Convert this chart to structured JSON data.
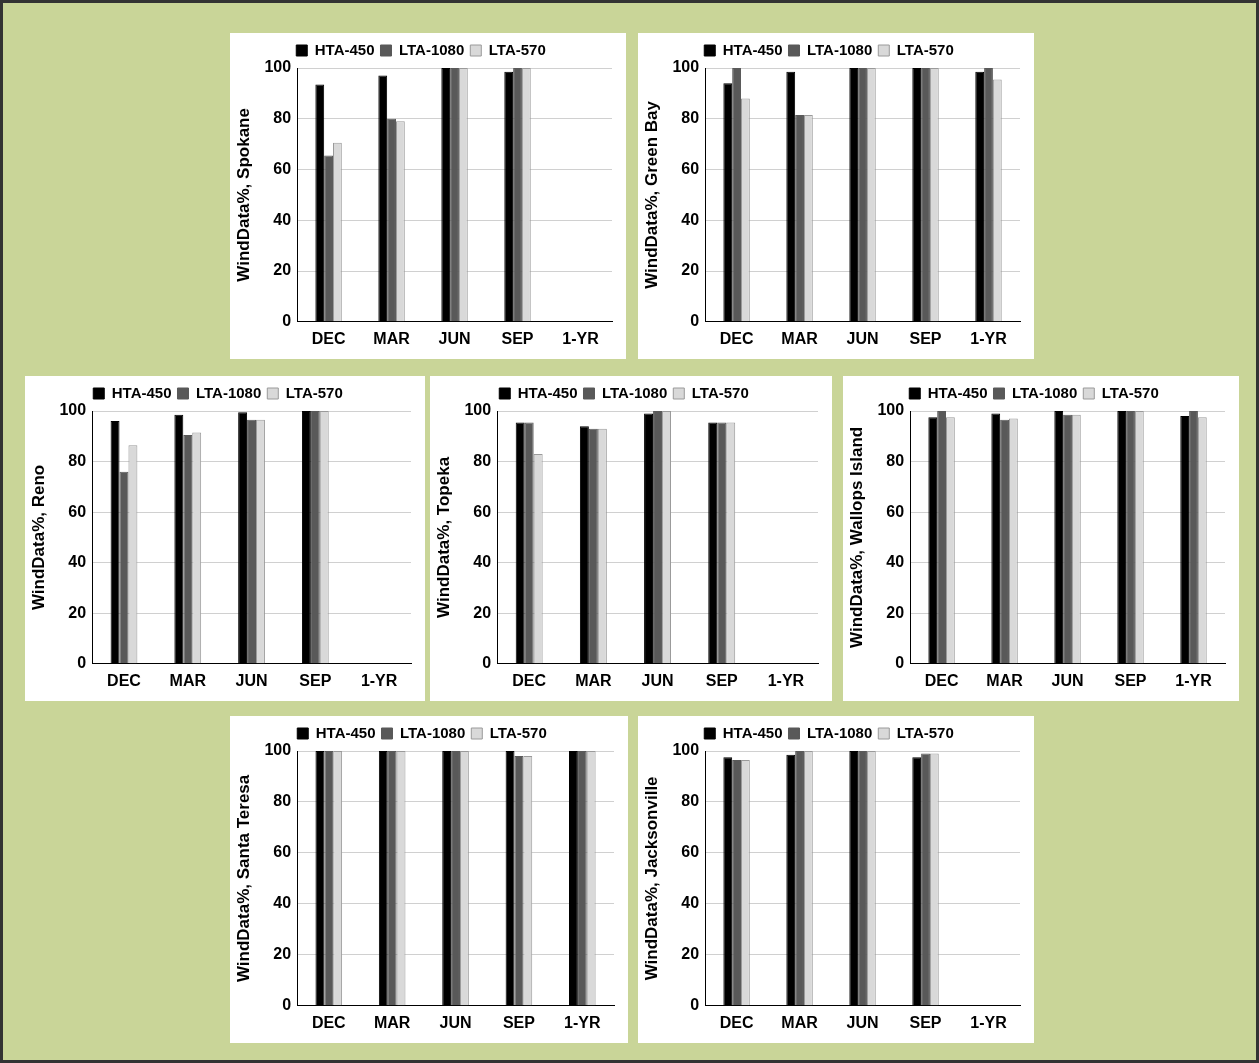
{
  "chart_data": [
    {
      "type": "bar",
      "ylabel": "WindData%, Spokane",
      "categories": [
        "DEC",
        "MAR",
        "JUN",
        "SEP",
        "1-YR"
      ],
      "ylim": [
        0,
        100
      ],
      "yticks": [
        0,
        20,
        40,
        60,
        80,
        100
      ],
      "grid": "y",
      "legend": "top",
      "series": [
        {
          "name": "HTA-450",
          "color": "#000000",
          "values": [
            93.5,
            97,
            100,
            98.5,
            null
          ]
        },
        {
          "name": "LTA-1080",
          "color": "#595959",
          "values": [
            65.5,
            80,
            100,
            100,
            null
          ]
        },
        {
          "name": "LTA-570",
          "color": "#d9d9d9",
          "values": [
            70.5,
            79,
            100,
            100,
            null
          ]
        }
      ]
    },
    {
      "type": "bar",
      "ylabel": "WindData%, Green Bay",
      "categories": [
        "DEC",
        "MAR",
        "JUN",
        "SEP",
        "1-YR"
      ],
      "ylim": [
        0,
        100
      ],
      "yticks": [
        0,
        20,
        40,
        60,
        80,
        100
      ],
      "grid": "y",
      "legend": "top",
      "series": [
        {
          "name": "HTA-450",
          "color": "#000000",
          "values": [
            94,
            98.5,
            100,
            100,
            98.5
          ]
        },
        {
          "name": "LTA-1080",
          "color": "#595959",
          "values": [
            100,
            81.5,
            100,
            100,
            100
          ]
        },
        {
          "name": "LTA-570",
          "color": "#d9d9d9",
          "values": [
            88,
            81.5,
            100,
            100,
            95.5
          ]
        }
      ]
    },
    {
      "type": "bar",
      "ylabel": "WindData%, Reno",
      "categories": [
        "DEC",
        "MAR",
        "JUN",
        "SEP",
        "1-YR"
      ],
      "ylim": [
        0,
        100
      ],
      "yticks": [
        0,
        20,
        40,
        60,
        80,
        100
      ],
      "grid": "y",
      "legend": "top",
      "series": [
        {
          "name": "HTA-450",
          "color": "#000000",
          "values": [
            96,
            98.5,
            99.5,
            100,
            null
          ]
        },
        {
          "name": "LTA-1080",
          "color": "#595959",
          "values": [
            76,
            90.5,
            96.5,
            100,
            null
          ]
        },
        {
          "name": "LTA-570",
          "color": "#d9d9d9",
          "values": [
            86.5,
            91.5,
            96.5,
            100,
            null
          ]
        }
      ]
    },
    {
      "type": "bar",
      "ylabel": "WindData%, Topeka",
      "categories": [
        "DEC",
        "MAR",
        "JUN",
        "SEP",
        "1-YR"
      ],
      "ylim": [
        0,
        100
      ],
      "yticks": [
        0,
        20,
        40,
        60,
        80,
        100
      ],
      "grid": "y",
      "legend": "top",
      "series": [
        {
          "name": "HTA-450",
          "color": "#000000",
          "values": [
            95.5,
            94,
            99,
            95.5,
            null
          ]
        },
        {
          "name": "LTA-1080",
          "color": "#595959",
          "values": [
            95.5,
            93,
            100,
            95.5,
            null
          ]
        },
        {
          "name": "LTA-570",
          "color": "#d9d9d9",
          "values": [
            83,
            93,
            100,
            95.5,
            null
          ]
        }
      ]
    },
    {
      "type": "bar",
      "ylabel": "WindData%, Wallops Island",
      "categories": [
        "DEC",
        "MAR",
        "JUN",
        "SEP",
        "1-YR"
      ],
      "ylim": [
        0,
        100
      ],
      "yticks": [
        0,
        20,
        40,
        60,
        80,
        100
      ],
      "grid": "y",
      "legend": "top",
      "series": [
        {
          "name": "HTA-450",
          "color": "#000000",
          "values": [
            97.5,
            99,
            100,
            100,
            98
          ]
        },
        {
          "name": "LTA-1080",
          "color": "#595959",
          "values": [
            100,
            96.5,
            98.5,
            100,
            100
          ]
        },
        {
          "name": "LTA-570",
          "color": "#d9d9d9",
          "values": [
            97.5,
            97,
            98.5,
            100,
            97.5
          ]
        }
      ]
    },
    {
      "type": "bar",
      "ylabel": "WindData%, Santa Teresa",
      "categories": [
        "DEC",
        "MAR",
        "JUN",
        "SEP",
        "1-YR"
      ],
      "ylim": [
        0,
        100
      ],
      "yticks": [
        0,
        20,
        40,
        60,
        80,
        100
      ],
      "grid": "y",
      "legend": "top",
      "series": [
        {
          "name": "HTA-450",
          "color": "#000000",
          "values": [
            100,
            100,
            100,
            100,
            100
          ]
        },
        {
          "name": "LTA-1080",
          "color": "#595959",
          "values": [
            100,
            100,
            100,
            98,
            100
          ]
        },
        {
          "name": "LTA-570",
          "color": "#d9d9d9",
          "values": [
            100,
            100,
            100,
            98,
            100
          ]
        }
      ]
    },
    {
      "type": "bar",
      "ylabel": "WindData%, Jacksonville",
      "categories": [
        "DEC",
        "MAR",
        "JUN",
        "SEP",
        "1-YR"
      ],
      "ylim": [
        0,
        100
      ],
      "yticks": [
        0,
        20,
        40,
        60,
        80,
        100
      ],
      "grid": "y",
      "legend": "top",
      "series": [
        {
          "name": "HTA-450",
          "color": "#000000",
          "values": [
            97.5,
            98.5,
            100,
            97.5,
            null
          ]
        },
        {
          "name": "LTA-1080",
          "color": "#595959",
          "values": [
            96.5,
            100,
            100,
            99,
            null
          ]
        },
        {
          "name": "LTA-570",
          "color": "#d9d9d9",
          "values": [
            96.5,
            100,
            100,
            99,
            null
          ]
        }
      ]
    }
  ]
}
